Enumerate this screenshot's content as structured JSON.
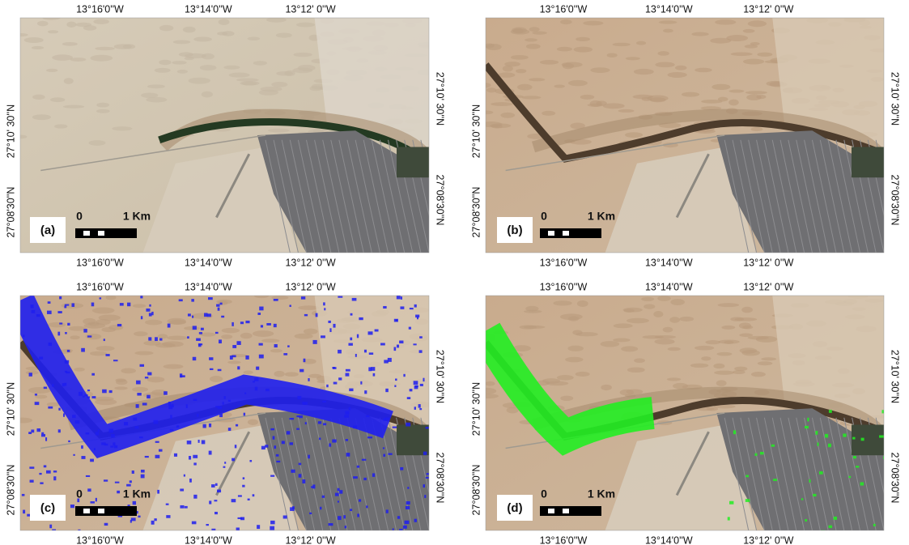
{
  "panels": [
    {
      "label": "(a)",
      "top_ticks": [
        "13°16'0''W",
        "13°14'0''W",
        "13°12' 0''W"
      ],
      "bottom_ticks": [
        "13°16'0''W",
        "13°14'0''W",
        "13°12' 0''W"
      ],
      "left_ticks": [
        "27°10' 30''N",
        "27°08'30''N"
      ],
      "right_ticks": [
        "27°10' 30''N",
        "27°08'30''N"
      ],
      "scale": {
        "start": "0",
        "end": "1 Km"
      }
    },
    {
      "label": "(b)",
      "top_ticks": [
        "13°16'0''W",
        "13°14'0''W",
        "13°12' 0''W"
      ],
      "bottom_ticks": [
        "13°16'0''W",
        "13°14'0''W",
        "13°12' 0''W"
      ],
      "left_ticks": [
        "27°10' 30''N",
        "27°08'30''N"
      ],
      "right_ticks": [
        "27°10' 30''N",
        "27°08'30''N"
      ],
      "scale": {
        "start": "0",
        "end": "1 Km"
      }
    },
    {
      "label": "(c)",
      "top_ticks": [
        "13°16'0''W",
        "13°14'0''W",
        "13°12' 0''W"
      ],
      "bottom_ticks": [
        "13°16'0''W",
        "13°14'0''W",
        "13°12' 0''W"
      ],
      "left_ticks": [
        "27°10' 30''N",
        "27°08'30''N"
      ],
      "right_ticks": [
        "27°10' 30''N",
        "27°08'30''N"
      ],
      "scale": {
        "start": "0",
        "end": "1 Km"
      }
    },
    {
      "label": "(d)",
      "top_ticks": [
        "13°16'0''W",
        "13°14'0''W",
        "13°12' 0''W"
      ],
      "bottom_ticks": [
        "13°16'0''W",
        "13°14'0''W",
        "13°12' 0''W"
      ],
      "left_ticks": [
        "27°10' 30''N",
        "27°08'30''N"
      ],
      "right_ticks": [
        "27°10' 30''N",
        "27°08'30''N"
      ],
      "scale": {
        "start": "0",
        "end": "1 Km"
      }
    }
  ]
}
